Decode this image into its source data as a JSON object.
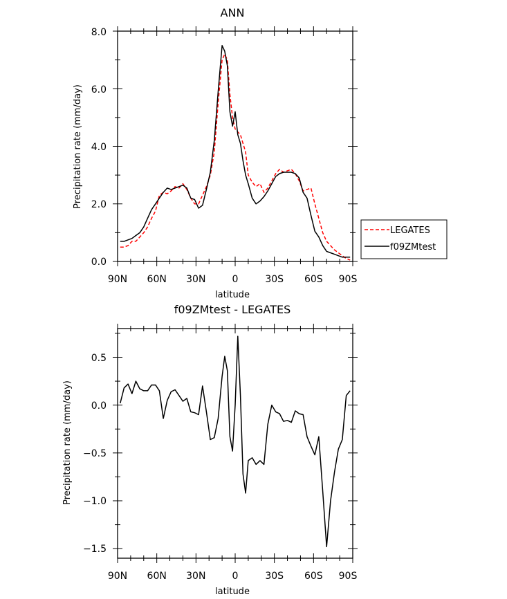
{
  "chart_data": [
    {
      "type": "line",
      "title": "ANN",
      "xlabel": "latitude",
      "ylabel": "Precipitation rate (mm/day)",
      "xlim": [
        90,
        -90
      ],
      "ylim": [
        0,
        8
      ],
      "x_tick_labels": [
        "90N",
        "60N",
        "30N",
        "0",
        "30S",
        "60S",
        "90S"
      ],
      "y_tick_labels": [
        "0.0",
        "2.0",
        "4.0",
        "6.0",
        "8.0"
      ],
      "legend_position": "right",
      "series": [
        {
          "name": "LEGATES",
          "color": "#ff0000",
          "dash": "dashed",
          "x": [
            88,
            85,
            82,
            79,
            76,
            73,
            70,
            67,
            64,
            61,
            58,
            55,
            52,
            49,
            46,
            43,
            40,
            37,
            34,
            31,
            28,
            25,
            22,
            19,
            16,
            13,
            10,
            8,
            6,
            4,
            2,
            0,
            -2,
            -4,
            -6,
            -8,
            -10,
            -13,
            -16,
            -19,
            -22,
            -25,
            -28,
            -31,
            -34,
            -37,
            -40,
            -43,
            -46,
            -49,
            -52,
            -55,
            -58,
            -61,
            -64,
            -67,
            -70,
            -73,
            -76,
            -79,
            -82,
            -85,
            -88
          ],
          "y": [
            0.5,
            0.5,
            0.55,
            0.7,
            0.7,
            0.85,
            1.0,
            1.2,
            1.5,
            1.75,
            2.3,
            2.4,
            2.35,
            2.45,
            2.6,
            2.55,
            2.7,
            2.5,
            2.2,
            2.0,
            2.0,
            2.3,
            2.6,
            3.0,
            3.8,
            5.5,
            7.0,
            7.2,
            7.0,
            5.8,
            5.0,
            4.6,
            4.5,
            4.4,
            4.1,
            3.8,
            3.0,
            2.75,
            2.6,
            2.7,
            2.4,
            2.55,
            2.8,
            3.05,
            3.2,
            3.1,
            3.15,
            3.2,
            3.05,
            2.8,
            2.45,
            2.5,
            2.55,
            2.0,
            1.5,
            1.0,
            0.7,
            0.55,
            0.4,
            0.3,
            0.2,
            0.1,
            0.05
          ]
        },
        {
          "name": "f09ZMtest",
          "color": "#000000",
          "dash": "solid",
          "x": [
            88,
            85,
            82,
            79,
            76,
            73,
            70,
            67,
            64,
            61,
            58,
            55,
            52,
            49,
            46,
            43,
            40,
            37,
            34,
            31,
            28,
            25,
            22,
            19,
            16,
            13,
            10,
            8,
            6,
            4,
            2,
            0,
            -2,
            -4,
            -6,
            -8,
            -10,
            -13,
            -16,
            -19,
            -22,
            -25,
            -28,
            -31,
            -34,
            -37,
            -40,
            -43,
            -46,
            -49,
            -52,
            -55,
            -58,
            -61,
            -64,
            -67,
            -70,
            -73,
            -76,
            -79,
            -82,
            -85,
            -88
          ],
          "y": [
            0.7,
            0.7,
            0.75,
            0.8,
            0.9,
            1.0,
            1.2,
            1.5,
            1.8,
            2.0,
            2.2,
            2.4,
            2.55,
            2.5,
            2.55,
            2.6,
            2.65,
            2.55,
            2.2,
            2.15,
            1.85,
            1.95,
            2.5,
            3.1,
            4.2,
            5.9,
            7.5,
            7.3,
            6.8,
            5.2,
            4.7,
            5.2,
            4.4,
            4.1,
            3.5,
            3.0,
            2.7,
            2.2,
            2.0,
            2.1,
            2.25,
            2.45,
            2.7,
            2.95,
            3.05,
            3.1,
            3.1,
            3.1,
            3.05,
            2.9,
            2.4,
            2.2,
            1.6,
            1.05,
            0.85,
            0.55,
            0.35,
            0.3,
            0.25,
            0.2,
            0.15,
            0.15,
            0.15
          ]
        }
      ]
    },
    {
      "type": "line",
      "title": "f09ZMtest - LEGATES",
      "xlabel": "latitude",
      "ylabel": "Precipitation rate (mm/day)",
      "xlim": [
        90,
        -90
      ],
      "ylim": [
        -1.6,
        0.8
      ],
      "x_tick_labels": [
        "90N",
        "60N",
        "30N",
        "0",
        "30S",
        "60S",
        "90S"
      ],
      "y_tick_labels": [
        "0.5",
        "0.0",
        "-0.5",
        "-1.0",
        "-1.5"
      ],
      "series": [
        {
          "color": "#000000",
          "x": [
            88,
            85,
            82,
            79,
            76,
            73,
            70,
            67,
            64,
            61,
            58,
            55,
            52,
            49,
            46,
            43,
            40,
            37,
            34,
            31,
            28,
            25,
            22,
            19,
            16,
            13,
            10,
            8,
            6,
            4,
            2,
            0,
            -2,
            -4,
            -6,
            -8,
            -10,
            -13,
            -16,
            -19,
            -22,
            -25,
            -28,
            -31,
            -34,
            -37,
            -40,
            -43,
            -46,
            -49,
            -52,
            -55,
            -58,
            -61,
            -64,
            -67,
            -70,
            -73,
            -76,
            -79,
            -82,
            -85,
            -88
          ],
          "y": [
            0.02,
            0.18,
            0.22,
            0.12,
            0.25,
            0.17,
            0.15,
            0.15,
            0.21,
            0.21,
            0.15,
            -0.14,
            0.05,
            0.14,
            0.16,
            0.1,
            0.04,
            0.07,
            -0.07,
            -0.08,
            -0.1,
            0.2,
            -0.07,
            -0.36,
            -0.34,
            -0.14,
            0.3,
            0.51,
            0.36,
            -0.33,
            -0.48,
            0.0,
            0.72,
            0.1,
            -0.72,
            -0.92,
            -0.58,
            -0.55,
            -0.62,
            -0.58,
            -0.62,
            -0.2,
            0.0,
            -0.07,
            -0.09,
            -0.17,
            -0.16,
            -0.18,
            -0.06,
            -0.09,
            -0.1,
            -0.33,
            -0.43,
            -0.52,
            -0.33,
            -0.9,
            -1.48,
            -1.0,
            -0.7,
            -0.46,
            -0.36,
            0.1,
            0.15
          ]
        }
      ]
    }
  ]
}
